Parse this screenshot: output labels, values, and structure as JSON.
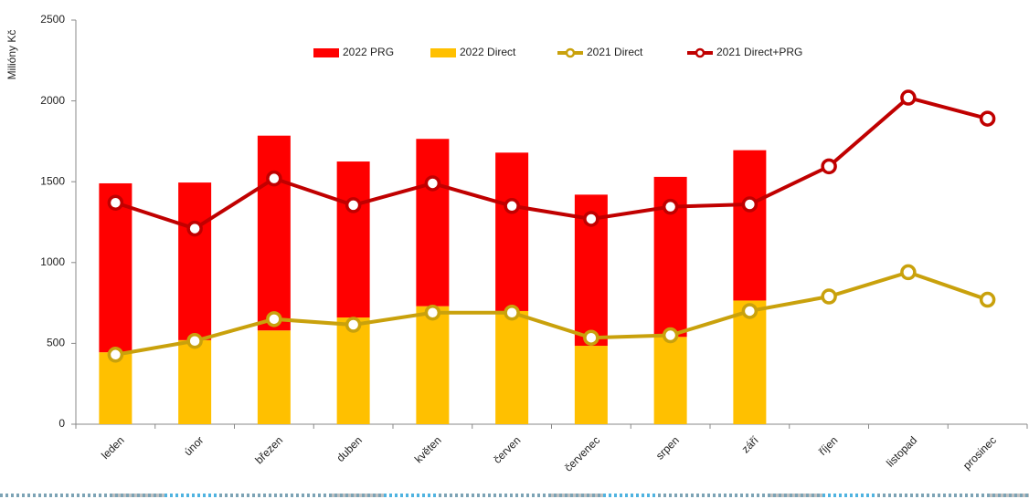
{
  "chart_data": {
    "type": "combo",
    "y_label": "Milióny Kč",
    "categories": [
      "leden",
      "únor",
      "březen",
      "duben",
      "květen",
      "červen",
      "červenec",
      "srpen",
      "září",
      "říjen",
      "listopad",
      "prosinec"
    ],
    "series": [
      {
        "name": "2022 PRG",
        "color": "#ff0000",
        "type": "bar",
        "stack_order": 1,
        "values": [
          1045,
          975,
          1205,
          965,
          1035,
          980,
          935,
          990,
          930,
          null,
          null,
          null
        ]
      },
      {
        "name": "2022 Direct",
        "color": "#ffc000",
        "type": "bar",
        "stack_order": 0,
        "values": [
          445,
          520,
          580,
          660,
          730,
          700,
          485,
          540,
          765,
          null,
          null,
          null
        ]
      },
      {
        "name": "2021 Direct",
        "color": "#c9a10c",
        "type": "line",
        "values": [
          430,
          515,
          650,
          615,
          690,
          690,
          535,
          550,
          700,
          790,
          940,
          770
        ]
      },
      {
        "name": "2021 Direct+PRG",
        "color": "#c00000",
        "type": "line",
        "values": [
          1370,
          1210,
          1520,
          1355,
          1490,
          1350,
          1270,
          1345,
          1360,
          1595,
          2020,
          1890
        ]
      }
    ],
    "ylim": [
      0,
      2500
    ],
    "yticks": [
      0,
      500,
      1000,
      1500,
      2000,
      2500
    ],
    "grid": false,
    "legend": "top"
  }
}
